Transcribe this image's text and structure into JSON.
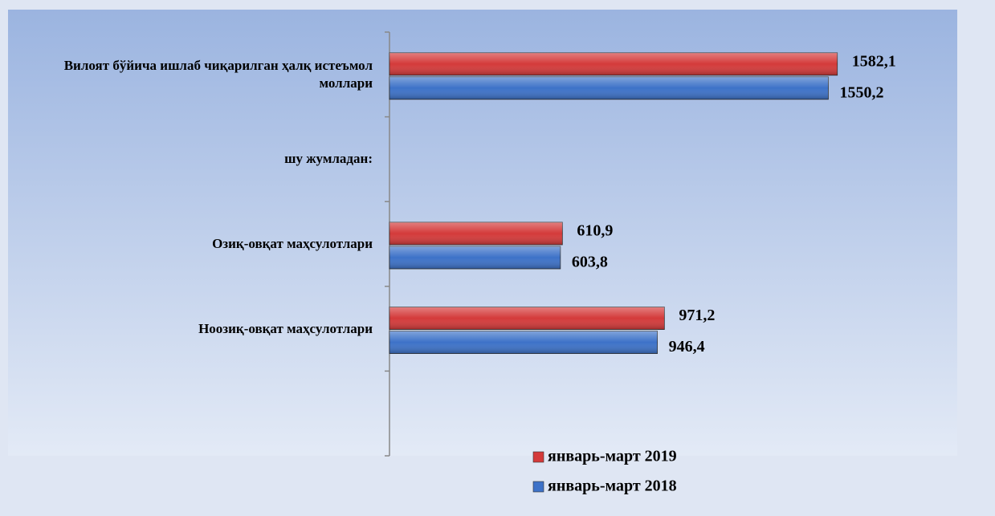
{
  "chart_data": {
    "type": "hbar",
    "categories": [
      "Вилоят бўйича ишлаб чиқарилган ҳалқ истеъмол моллари",
      "шу жумладан:",
      "Озиқ-овқат маҳсулотлари",
      "Ноозиқ-овқат маҳсулотлари",
      null
    ],
    "series": [
      {
        "name": "январь-март 2019",
        "color": "#d43a3a",
        "values": [
          1582.1,
          null,
          610.9,
          971.2,
          null
        ],
        "value_labels": [
          "1582,1",
          null,
          "610,9",
          "971,2",
          null
        ]
      },
      {
        "name": "январь-март 2018",
        "color": "#3d72c8",
        "values": [
          1550.2,
          null,
          603.8,
          946.4,
          null
        ],
        "value_labels": [
          "1550,2",
          null,
          "603,8",
          "946,4",
          null
        ]
      }
    ],
    "xlim": [
      0,
      2000
    ]
  }
}
